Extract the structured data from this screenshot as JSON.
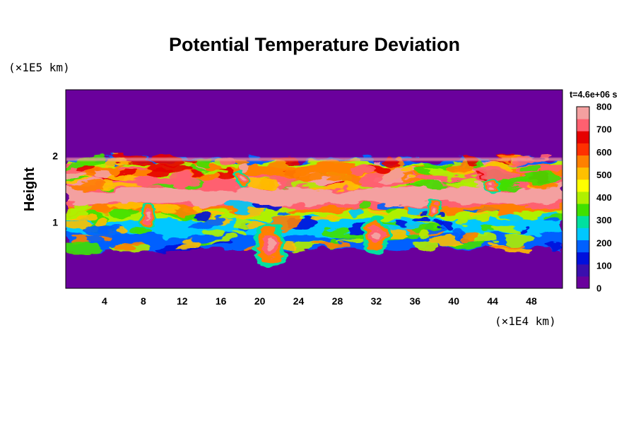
{
  "chart_data": {
    "type": "heatmap",
    "title": "Potential Temperature Deviation",
    "ylabel": "Height",
    "xlabel": "",
    "y_unit_label": "(×1E5 km)",
    "x_unit_label": "(×1E4 km)",
    "time_label": "t=4.6e+06 s",
    "xlim": [
      0,
      51.2
    ],
    "ylim": [
      0,
      3
    ],
    "x_ticks": [
      4,
      8,
      12,
      16,
      20,
      24,
      28,
      32,
      36,
      40,
      44,
      48
    ],
    "y_ticks": [
      1,
      2
    ],
    "colorbar": {
      "min": 0,
      "max": 800,
      "ticks": [
        0,
        100,
        200,
        300,
        400,
        500,
        600,
        700,
        800
      ],
      "colors": [
        "#6a009c",
        "#3a0fae",
        "#0010dc",
        "#0060ff",
        "#00c8ff",
        "#00e0a0",
        "#40e000",
        "#b0f000",
        "#ffff00",
        "#ffc000",
        "#ff8000",
        "#ff3000",
        "#e60000",
        "#ff6070",
        "#f4a0a0"
      ]
    },
    "background_value": 0,
    "features": {
      "turbulent_layer_y": [
        0.6,
        1.95
      ],
      "hot_band_y": [
        1.28,
        1.5
      ],
      "hot_band_value": 800
    }
  }
}
